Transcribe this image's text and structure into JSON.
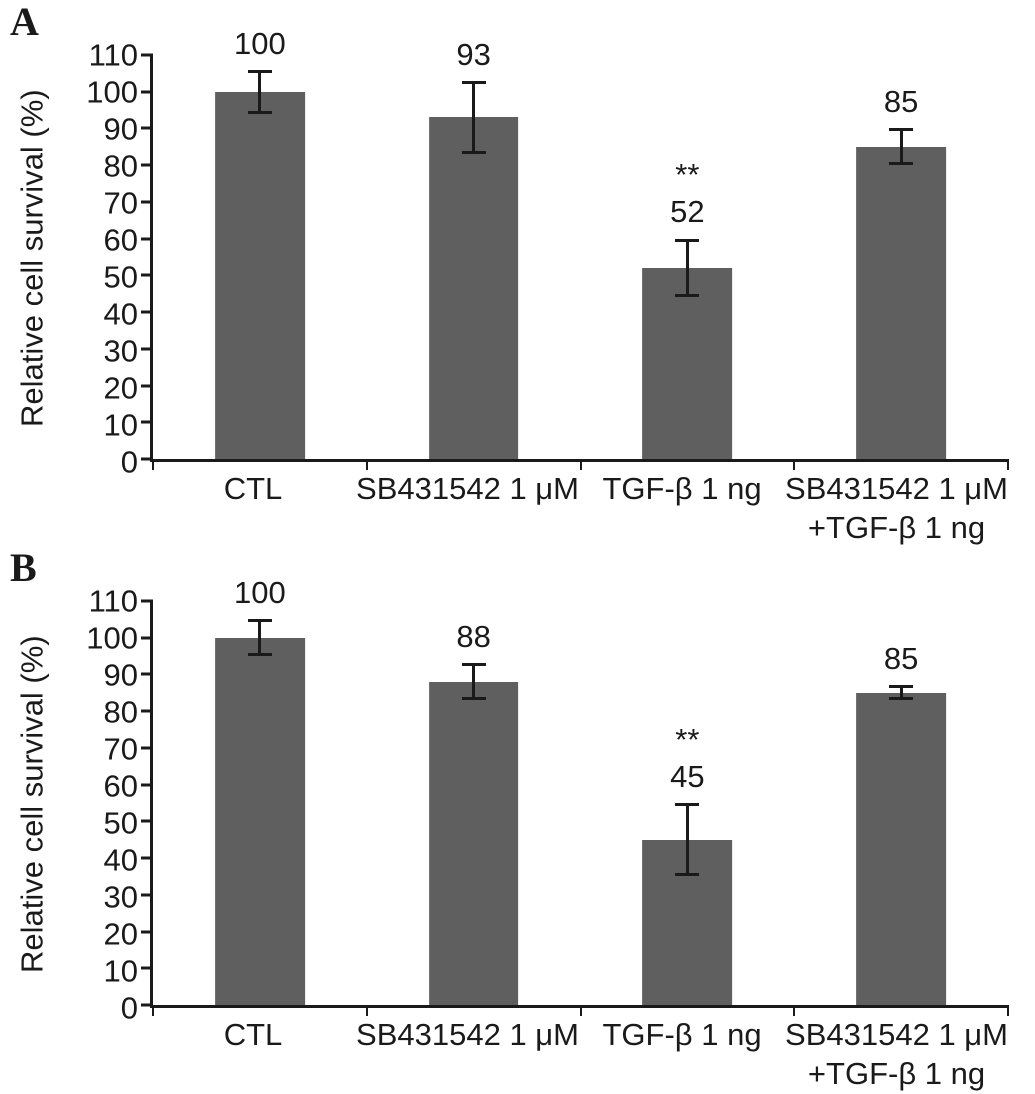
{
  "figure": {
    "background": "#ffffff",
    "text_color": "#1a1a1a"
  },
  "chart_data": [
    {
      "type": "bar",
      "panel_label": "A",
      "title": "",
      "xlabel": "",
      "ylabel": "Relative cell survival (%)",
      "ylim": [
        0,
        110
      ],
      "ytick_step": 10,
      "grid": false,
      "legend": false,
      "bar_color": "#5f5f5f",
      "categories": [
        "CTL",
        "SB431542 1 μM",
        "TGF-β 1 ng",
        "SB431542 1 μM\n+TGF-β 1 ng"
      ],
      "values": [
        100,
        93,
        52,
        85
      ],
      "value_labels": [
        "100",
        "93",
        "52",
        "85"
      ],
      "error_bars": [
        6,
        10,
        8,
        5
      ],
      "significance": [
        "",
        "",
        "**",
        ""
      ]
    },
    {
      "type": "bar",
      "panel_label": "B",
      "title": "",
      "xlabel": "",
      "ylabel": "Relative cell survival (%)",
      "ylim": [
        0,
        110
      ],
      "ytick_step": 10,
      "grid": false,
      "legend": false,
      "bar_color": "#5f5f5f",
      "categories": [
        "CTL",
        "SB431542 1 μM",
        "TGF-β 1 ng",
        "SB431542 1 μM\n+TGF-β 1 ng"
      ],
      "values": [
        100,
        88,
        45,
        85
      ],
      "value_labels": [
        "100",
        "88",
        "45",
        "85"
      ],
      "error_bars": [
        5,
        5,
        10,
        2
      ],
      "significance": [
        "",
        "",
        "**",
        ""
      ]
    }
  ]
}
